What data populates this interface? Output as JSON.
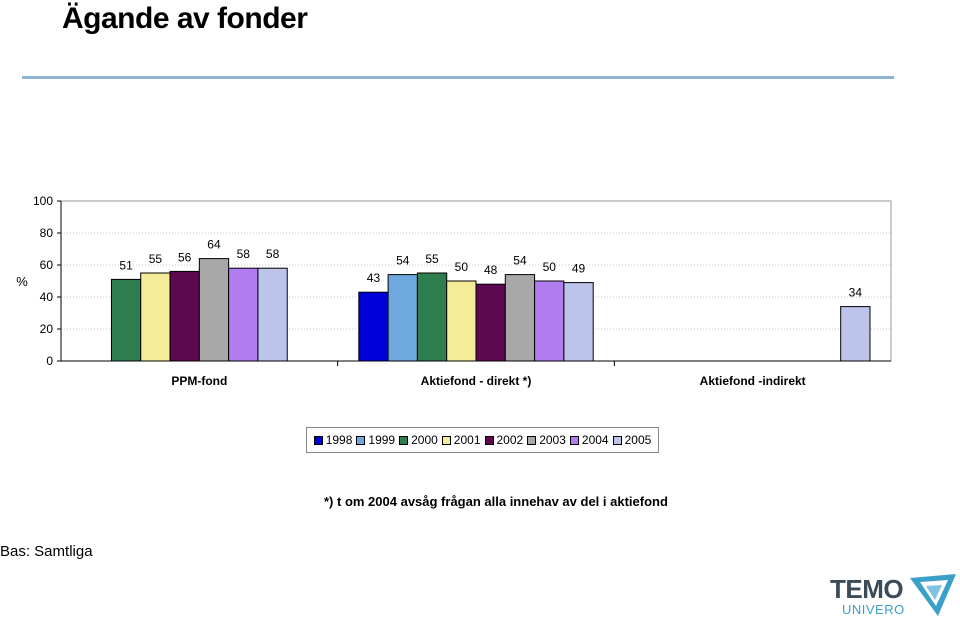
{
  "page": {
    "title": "Ägande av fonder"
  },
  "footnote": "*) t om 2004 avsåg frågan alla innehav av del i aktiefond",
  "base_note": "Bas: Samtliga",
  "logo": {
    "line1": "TEMO",
    "line2": "UNIVERO"
  },
  "colors": {
    "1998": "#0000d8",
    "1999": "#6fa8dc",
    "2000": "#2e7d4f",
    "2001": "#f4ec96",
    "2002": "#5c0a4f",
    "2003": "#a8a8a8",
    "2004": "#b07cf0",
    "2005": "#bcc4ec"
  },
  "chart_data": {
    "type": "bar",
    "title": "Ägande av fonder",
    "ylabel": "%",
    "ylim": [
      0,
      100
    ],
    "yticks": [
      0,
      20,
      40,
      60,
      80,
      100
    ],
    "grid": true,
    "legend_position": "bottom",
    "categories": [
      "PPM-fond",
      "Aktiefond - direkt *)",
      "Aktiefond -indirekt"
    ],
    "series": [
      {
        "name": "1998",
        "values": [
          null,
          43,
          null
        ]
      },
      {
        "name": "1999",
        "values": [
          null,
          54,
          null
        ]
      },
      {
        "name": "2000",
        "values": [
          51,
          55,
          null
        ]
      },
      {
        "name": "2001",
        "values": [
          55,
          50,
          null
        ]
      },
      {
        "name": "2002",
        "values": [
          56,
          48,
          null
        ]
      },
      {
        "name": "2003",
        "values": [
          64,
          54,
          null
        ]
      },
      {
        "name": "2004",
        "values": [
          58,
          50,
          null
        ]
      },
      {
        "name": "2005",
        "values": [
          58,
          49,
          34
        ]
      }
    ]
  }
}
